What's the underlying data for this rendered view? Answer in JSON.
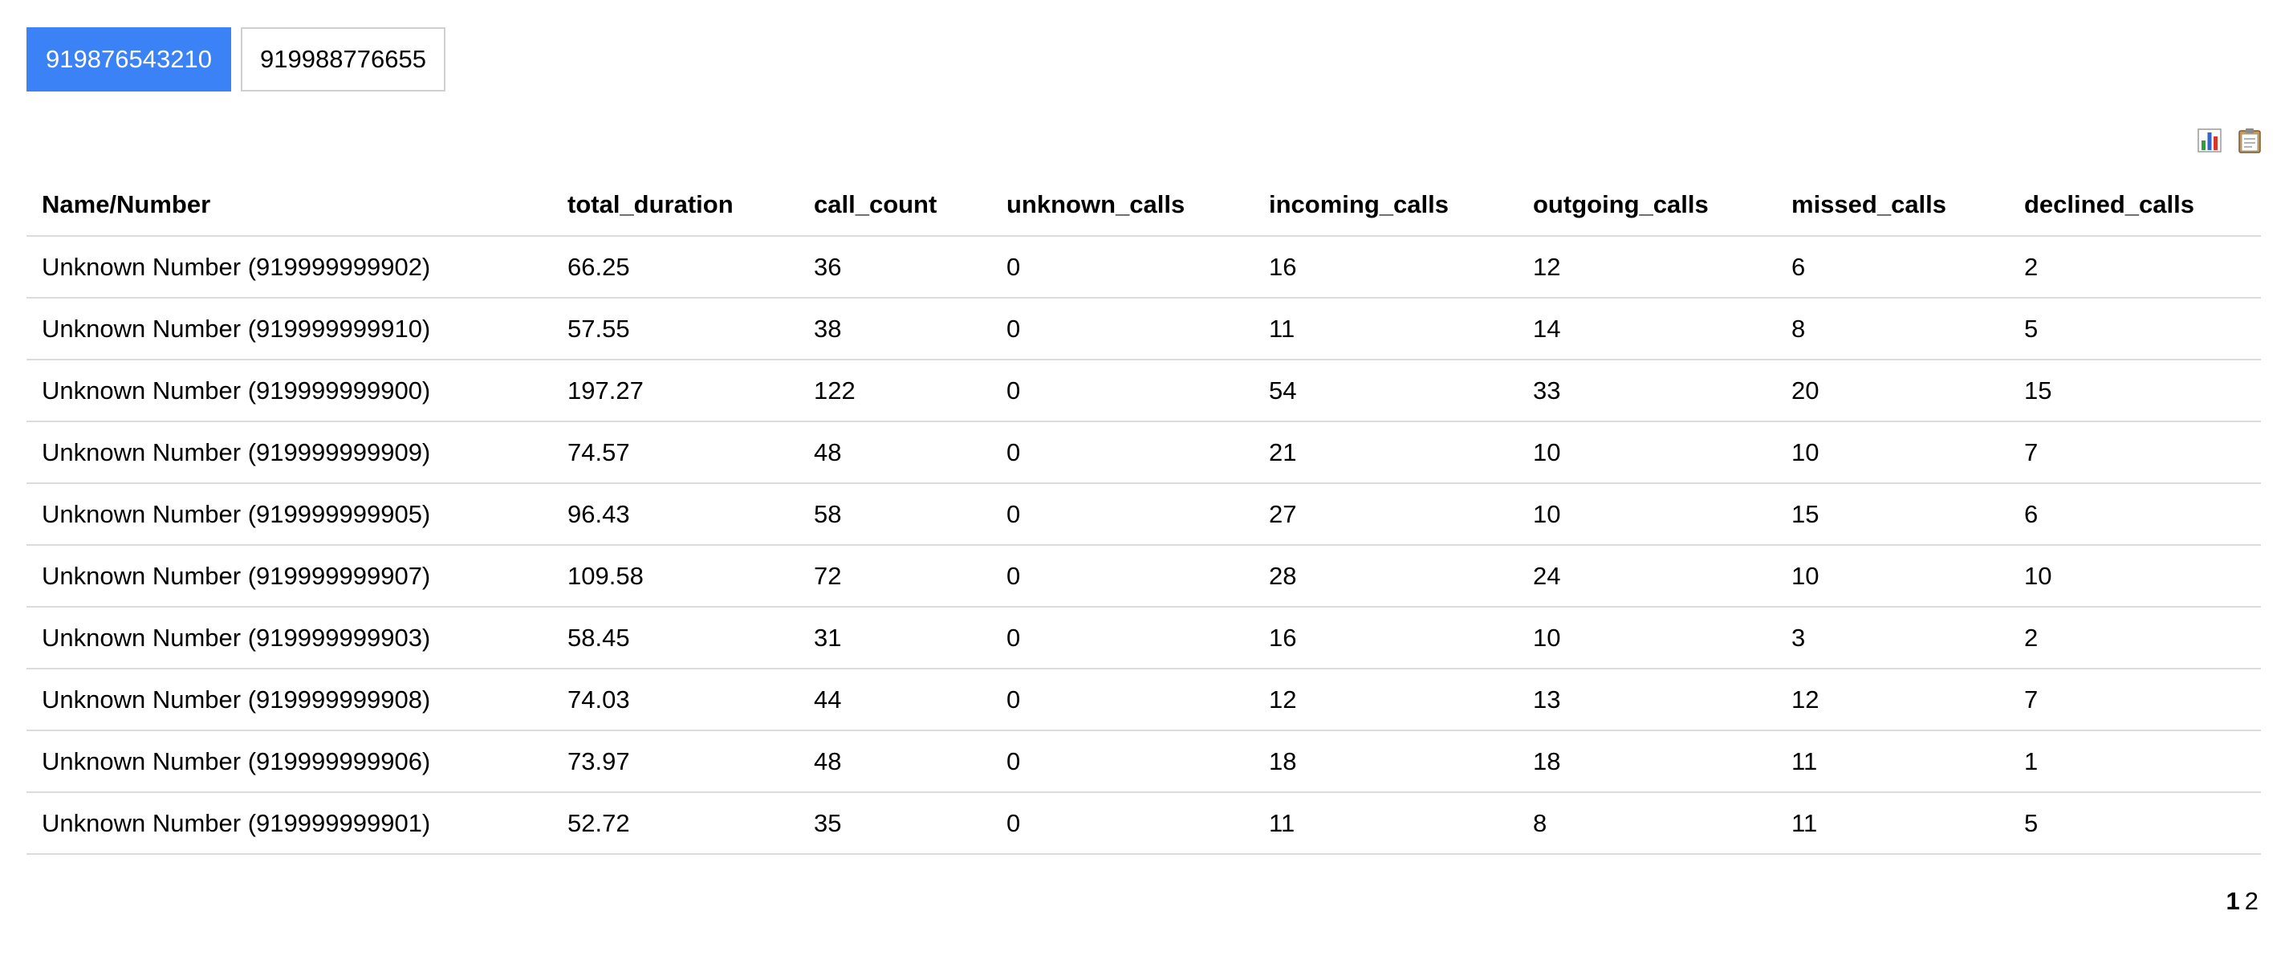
{
  "tabs": [
    {
      "label": "919876543210",
      "active": true
    },
    {
      "label": "919988776655",
      "active": false
    }
  ],
  "tools": {
    "chart_icon": "bar-chart-icon",
    "clipboard_icon": "clipboard-icon",
    "colors": {
      "accent": "#3b82f6",
      "bar_green": "#2e9e3f",
      "bar_blue": "#3366cc",
      "bar_red": "#d9362b"
    }
  },
  "table": {
    "headers": [
      "Name/Number",
      "total_duration",
      "call_count",
      "unknown_calls",
      "incoming_calls",
      "outgoing_calls",
      "missed_calls",
      "declined_calls"
    ],
    "rows": [
      [
        "Unknown Number (919999999902)",
        "66.25",
        "36",
        "0",
        "16",
        "12",
        "6",
        "2"
      ],
      [
        "Unknown Number (919999999910)",
        "57.55",
        "38",
        "0",
        "11",
        "14",
        "8",
        "5"
      ],
      [
        "Unknown Number (919999999900)",
        "197.27",
        "122",
        "0",
        "54",
        "33",
        "20",
        "15"
      ],
      [
        "Unknown Number (919999999909)",
        "74.57",
        "48",
        "0",
        "21",
        "10",
        "10",
        "7"
      ],
      [
        "Unknown Number (919999999905)",
        "96.43",
        "58",
        "0",
        "27",
        "10",
        "15",
        "6"
      ],
      [
        "Unknown Number (919999999907)",
        "109.58",
        "72",
        "0",
        "28",
        "24",
        "10",
        "10"
      ],
      [
        "Unknown Number (919999999903)",
        "58.45",
        "31",
        "0",
        "16",
        "10",
        "3",
        "2"
      ],
      [
        "Unknown Number (919999999908)",
        "74.03",
        "44",
        "0",
        "12",
        "13",
        "12",
        "7"
      ],
      [
        "Unknown Number (919999999906)",
        "73.97",
        "48",
        "0",
        "18",
        "18",
        "11",
        "1"
      ],
      [
        "Unknown Number (919999999901)",
        "52.72",
        "35",
        "0",
        "11",
        "8",
        "11",
        "5"
      ]
    ]
  },
  "pagination": {
    "pages": [
      "1",
      "2"
    ],
    "current": "1"
  }
}
